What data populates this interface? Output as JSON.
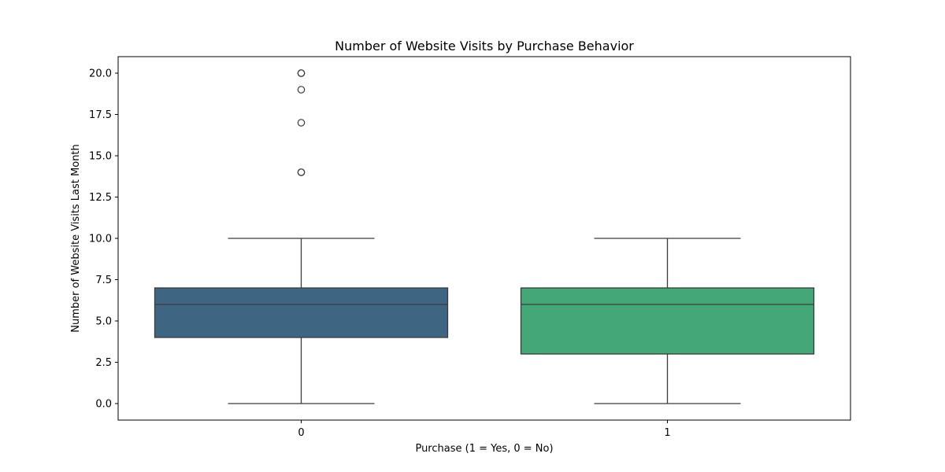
{
  "chart_data": {
    "type": "box",
    "title": "Number of Website Visits by Purchase Behavior",
    "xlabel": "Purchase (1 = Yes, 0 = No)",
    "ylabel": "Number of Website Visits Last Month",
    "categories": [
      "0",
      "1"
    ],
    "ylim": [
      -1,
      21
    ],
    "yticks": [
      0.0,
      2.5,
      5.0,
      7.5,
      10.0,
      12.5,
      15.0,
      17.5,
      20.0
    ],
    "ytick_labels": [
      "0.0",
      "2.5",
      "5.0",
      "7.5",
      "10.0",
      "12.5",
      "15.0",
      "17.5",
      "20.0"
    ],
    "grid": false,
    "legend": "none",
    "boxes": [
      {
        "category": "0",
        "whisker_low": 0,
        "q1": 4,
        "median": 6,
        "q3": 7,
        "whisker_high": 10,
        "outliers": [
          14,
          14,
          17,
          19,
          20,
          20
        ],
        "color": "#3e6683"
      },
      {
        "category": "1",
        "whisker_low": 0,
        "q1": 3,
        "median": 6,
        "q3": 7,
        "whisker_high": 10,
        "outliers": [],
        "color": "#44a776"
      }
    ],
    "line_color": "#3b3b3b"
  }
}
